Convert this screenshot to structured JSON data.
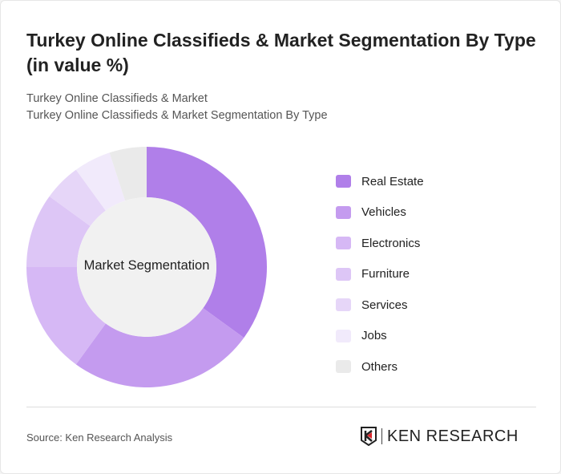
{
  "header": {
    "title": "Turkey Online Classifieds & Market Segmentation By Type (in value %)",
    "subtitle1": "Turkey Online Classifieds & Market",
    "subtitle2": "Turkey Online Classifieds & Market Segmentation By Type"
  },
  "chart_data": {
    "type": "pie",
    "donut": true,
    "center_label": "Market Segmentation",
    "categories": [
      "Real Estate",
      "Vehicles",
      "Electronics",
      "Furniture",
      "Services",
      "Jobs",
      "Others"
    ],
    "values": [
      35,
      25,
      15,
      10,
      5,
      5,
      5
    ],
    "colors": [
      "#b07fe9",
      "#c49bef",
      "#d6b8f5",
      "#ddc6f6",
      "#e6d6f8",
      "#f1eafb",
      "#eaeaea"
    ],
    "legend_position": "right"
  },
  "footer": {
    "source": "Source: Ken Research Analysis",
    "logo_text": "KEN RESEARCH"
  }
}
